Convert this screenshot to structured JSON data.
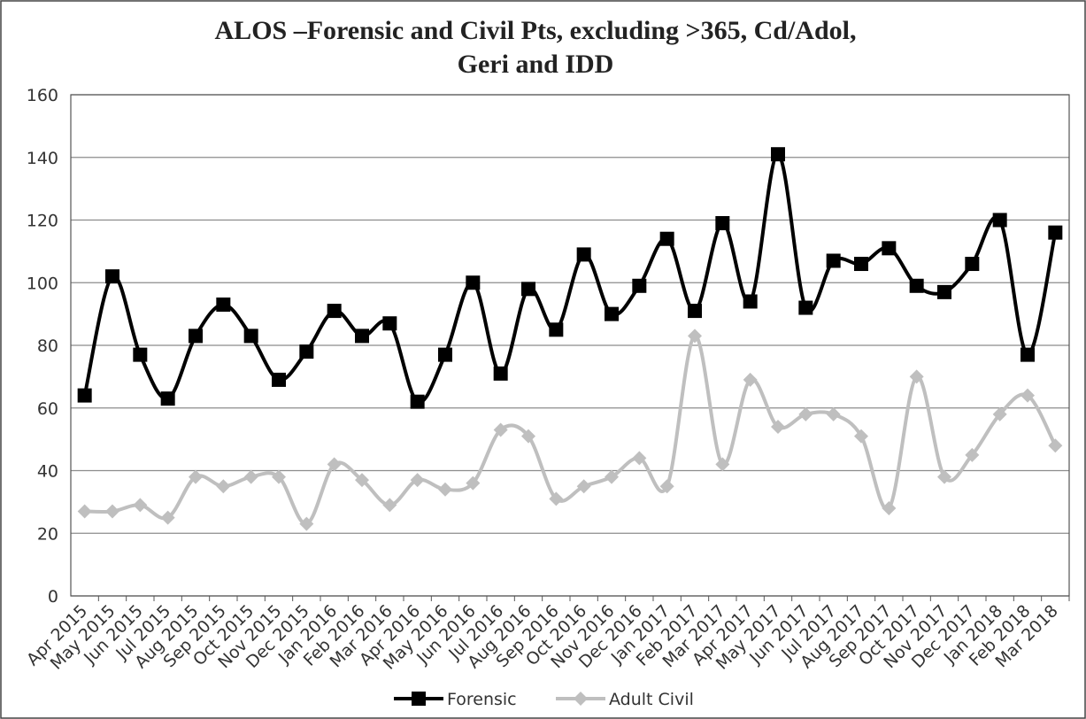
{
  "chart_data": {
    "type": "line",
    "title": [
      "ALOS –Forensic and Civil Pts, excluding >365, Cd/Adol,",
      "Geri and IDD"
    ],
    "categories": [
      "Apr 2015",
      "May 2015",
      "Jun 2015",
      "Jul 2015",
      "Aug 2015",
      "Sep 2015",
      "Oct 2015",
      "Nov 2015",
      "Dec 2015",
      "Jan 2016",
      "Feb 2016",
      "Mar 2016",
      "Apr 2016",
      "May 2016",
      "Jun 2016",
      "Jul 2016",
      "Aug 2016",
      "Sep 2016",
      "Oct 2016",
      "Nov 2016",
      "Dec 2016",
      "Jan 2017",
      "Feb 2017",
      "Mar 2017",
      "Apr 2017",
      "May 2017",
      "Jun 2017",
      "Jul 2017",
      "Aug 2017",
      "Sep 2017",
      "Oct 2017",
      "Nov 2017",
      "Dec 2017",
      "Jan 2018",
      "Feb 2018",
      "Mar 2018"
    ],
    "series": [
      {
        "name": "Forensic",
        "color": "#000000",
        "marker": "square",
        "values": [
          64,
          102,
          77,
          63,
          83,
          93,
          83,
          69,
          78,
          91,
          83,
          87,
          62,
          77,
          100,
          71,
          98,
          85,
          109,
          90,
          99,
          114,
          91,
          119,
          94,
          141,
          92,
          107,
          106,
          111,
          99,
          97,
          106,
          120,
          77,
          116
        ]
      },
      {
        "name": "Adult Civil",
        "color": "#bfbfbf",
        "marker": "diamond",
        "values": [
          27,
          27,
          29,
          25,
          38,
          35,
          38,
          38,
          23,
          42,
          37,
          29,
          37,
          34,
          36,
          53,
          51,
          31,
          35,
          38,
          44,
          35,
          83,
          42,
          69,
          54,
          58,
          58,
          51,
          28,
          70,
          38,
          45,
          58,
          64,
          48
        ]
      }
    ],
    "ylim": [
      0,
      160
    ],
    "yticks": [
      0,
      20,
      40,
      60,
      80,
      100,
      120,
      140,
      160
    ],
    "grid": true,
    "smooth": true,
    "legend": "bottom"
  }
}
